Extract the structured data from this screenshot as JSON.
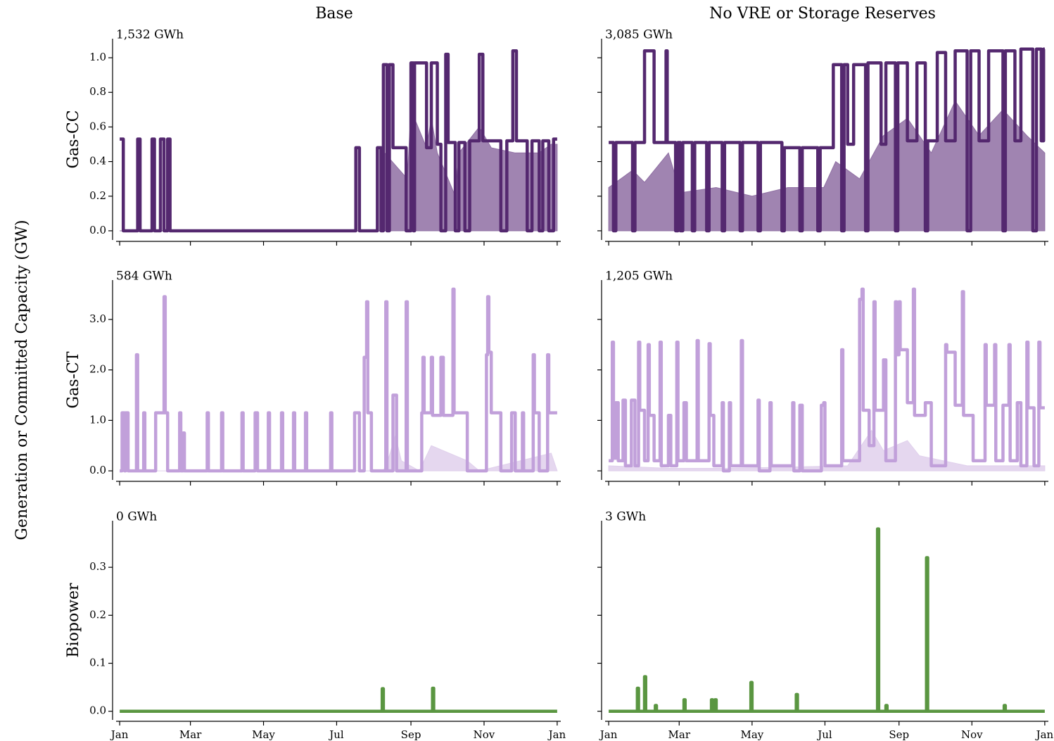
{
  "ylabel": "Generation or Committed Capacity (GW)",
  "chart_data": [
    {
      "type": "line",
      "title": "Base",
      "ylabel": "Gas-CC",
      "annotation": "1,532 GWh",
      "ylim": [
        -0.053,
        1.11
      ],
      "yticks": [
        {
          "value": 0,
          "label": "0.0"
        },
        {
          "value": 0.2,
          "label": "0.2"
        },
        {
          "value": 0.4,
          "label": "0.4"
        },
        {
          "value": 0.6,
          "label": "0.6"
        },
        {
          "value": 0.8,
          "label": "0.8"
        },
        {
          "value": 1.0,
          "label": "1.0"
        }
      ],
      "series": [
        {
          "style": "area",
          "color": "#8f6fa3",
          "x": [
            0,
            220,
            221,
            240,
            243,
            256,
            260,
            265,
            280,
            283,
            300,
            310,
            330,
            350,
            360,
            365
          ],
          "values": [
            0,
            0,
            0.45,
            0.3,
            0.7,
            0.48,
            0.65,
            0.45,
            0.2,
            0.45,
            0.6,
            0.48,
            0.45,
            0.45,
            0.5,
            0.5
          ]
        },
        {
          "style": "step",
          "color": "#54286f",
          "x": [
            0,
            3,
            15,
            17,
            27,
            29,
            34,
            37,
            40,
            42,
            197,
            200,
            215,
            218,
            220,
            223,
            225,
            228,
            239,
            243,
            245,
            246,
            256,
            260,
            265,
            268,
            272,
            274,
            280,
            283,
            288,
            292,
            300,
            303,
            318,
            323,
            328,
            331,
            340,
            344,
            350,
            353,
            358,
            362,
            365
          ],
          "values": [
            0.53,
            0,
            0.53,
            0,
            0.53,
            0,
            0.53,
            0,
            0.53,
            0,
            0.48,
            0,
            0.48,
            0,
            0.96,
            0,
            0.96,
            0.48,
            0,
            0.97,
            0,
            0.97,
            0.48,
            0.97,
            0.5,
            0,
            1.02,
            0.51,
            0,
            0.51,
            0,
            0.52,
            1.02,
            0.52,
            0,
            0.52,
            1.04,
            0.52,
            0,
            0.52,
            0,
            0.52,
            0,
            0.53,
            0.53
          ]
        }
      ]
    },
    {
      "type": "line",
      "title": "No VRE or Storage Reserves",
      "annotation": "3,085 GWh",
      "series": [
        {
          "style": "area",
          "color": "#8f6fa3",
          "x": [
            0,
            20,
            30,
            50,
            60,
            90,
            120,
            150,
            180,
            190,
            210,
            230,
            250,
            270,
            290,
            310,
            330,
            350,
            365
          ],
          "values": [
            0.25,
            0.35,
            0.28,
            0.45,
            0.22,
            0.25,
            0.2,
            0.25,
            0.25,
            0.4,
            0.3,
            0.55,
            0.65,
            0.45,
            0.75,
            0.55,
            0.7,
            0.55,
            0.45
          ]
        },
        {
          "style": "step",
          "color": "#54286f",
          "x": [
            0,
            4,
            6,
            20,
            22,
            30,
            38,
            48,
            49,
            56,
            58,
            60,
            62,
            70,
            72,
            82,
            84,
            95,
            97,
            110,
            112,
            125,
            127,
            145,
            147,
            160,
            162,
            175,
            177,
            188,
            195,
            197,
            200,
            205,
            215,
            217,
            228,
            232,
            240,
            242,
            250,
            258,
            265,
            267,
            275,
            282,
            290,
            300,
            303,
            310,
            318,
            330,
            332,
            340,
            345,
            355,
            358,
            362,
            364,
            365
          ],
          "values": [
            0.51,
            0,
            0.51,
            0,
            0.51,
            1.04,
            0.51,
            1.04,
            0.51,
            0,
            0.51,
            0,
            0.51,
            0,
            0.51,
            0,
            0.51,
            0,
            0.51,
            0,
            0.51,
            0,
            0.51,
            0,
            0.48,
            0,
            0.48,
            0,
            0.48,
            0.96,
            0,
            0.96,
            0.5,
            0.96,
            0,
            0.97,
            0.5,
            0.97,
            0,
            0.97,
            0.52,
            0.97,
            0,
            0.52,
            1.03,
            0.52,
            1.04,
            0,
            1.04,
            0.52,
            1.04,
            0,
            1.04,
            0.52,
            1.05,
            0,
            1.05,
            0.52,
            1.05,
            1.05
          ]
        }
      ]
    },
    {
      "type": "line",
      "ylabel": "Gas-CT",
      "annotation": "584 GWh",
      "ylim": [
        -0.18,
        3.78
      ],
      "yticks": [
        {
          "value": 0,
          "label": "0.0"
        },
        {
          "value": 1,
          "label": "1.0"
        },
        {
          "value": 2,
          "label": "2.0"
        },
        {
          "value": 3,
          "label": "3.0"
        }
      ],
      "series": [
        {
          "style": "area",
          "color": "#e0d0ec",
          "x": [
            0,
            220,
            225,
            230,
            235,
            250,
            260,
            270,
            290,
            300,
            360,
            365
          ],
          "values": [
            0,
            0,
            0.3,
            0.7,
            0.2,
            0,
            0.5,
            0.4,
            0.2,
            0,
            0.35,
            0
          ]
        },
        {
          "style": "step",
          "color": "#c1a0da",
          "x": [
            0,
            2,
            4,
            5,
            7,
            14,
            15,
            20,
            21,
            30,
            37,
            38,
            40,
            50,
            51,
            53,
            54,
            73,
            74,
            85,
            86,
            102,
            103,
            113,
            115,
            124,
            125,
            135,
            136,
            145,
            146,
            155,
            156,
            176,
            177,
            196,
            200,
            204,
            206,
            207,
            210,
            222,
            223,
            228,
            231,
            239,
            240,
            252,
            253,
            254,
            260,
            261,
            268,
            270,
            278,
            279,
            290,
            306,
            307,
            308,
            310,
            318,
            327,
            330,
            336,
            337,
            345,
            346,
            350,
            357,
            358,
            365
          ],
          "values": [
            0,
            1.15,
            0,
            1.15,
            0,
            2.3,
            0,
            1.15,
            0,
            1.15,
            3.45,
            1.15,
            0,
            1.15,
            0,
            0.75,
            0,
            1.15,
            0,
            1.15,
            0,
            1.15,
            0,
            1.15,
            0,
            1.15,
            0,
            1.15,
            0,
            1.15,
            0,
            1.15,
            0,
            1.15,
            0,
            1.15,
            0,
            2.25,
            3.35,
            1.15,
            0,
            3.35,
            0,
            1.5,
            0,
            3.35,
            0,
            1.15,
            2.25,
            1.15,
            2.25,
            1.1,
            2.25,
            1.1,
            3.6,
            1.15,
            0,
            2.3,
            3.45,
            2.35,
            1.15,
            0,
            1.15,
            0,
            1.15,
            0,
            2.3,
            1.15,
            0,
            2.3,
            1.15,
            1.15
          ]
        }
      ]
    },
    {
      "type": "line",
      "annotation": "1,205 GWh",
      "series": [
        {
          "style": "area",
          "color": "#e0d0ec",
          "x": [
            0,
            50,
            100,
            200,
            220,
            230,
            250,
            260,
            300,
            365
          ],
          "values": [
            0.1,
            0.05,
            0.05,
            0.1,
            0.8,
            0.4,
            0.6,
            0.3,
            0.1,
            0.1
          ]
        },
        {
          "style": "step",
          "color": "#c1a0da",
          "x": [
            0,
            3,
            4,
            6,
            8,
            12,
            14,
            19,
            22,
            25,
            26,
            30,
            33,
            34,
            38,
            43,
            44,
            50,
            52,
            57,
            58,
            63,
            65,
            74,
            75,
            84,
            85,
            88,
            95,
            96,
            101,
            102,
            111,
            112,
            125,
            126,
            135,
            136,
            154,
            155,
            160,
            162,
            178,
            180,
            181,
            195,
            196,
            210,
            212,
            213,
            218,
            222,
            223,
            230,
            232,
            240,
            241,
            243,
            244,
            250,
            255,
            256,
            265,
            270,
            282,
            283,
            290,
            296,
            297,
            305,
            315,
            316,
            323,
            324,
            330,
            335,
            336,
            342,
            345,
            350,
            351,
            356,
            360,
            361,
            365
          ],
          "values": [
            0.2,
            2.55,
            0.25,
            1.35,
            0.2,
            1.4,
            0.1,
            1.4,
            0.1,
            2.55,
            1.2,
            0.2,
            2.5,
            1.1,
            0.2,
            2.55,
            0.1,
            1.1,
            0.1,
            2.55,
            0.2,
            1.35,
            0.2,
            2.58,
            0.2,
            2.52,
            1.1,
            0.1,
            1.35,
            0,
            1.35,
            0.1,
            2.58,
            0.1,
            1.4,
            0,
            1.35,
            0.1,
            1.35,
            0,
            1.3,
            0,
            1.3,
            1.35,
            0.1,
            2.4,
            0.2,
            3.4,
            3.6,
            1.2,
            0.5,
            3.35,
            1.2,
            2.2,
            0.2,
            3.35,
            2.3,
            3.35,
            2.4,
            1.35,
            3.6,
            1.1,
            1.35,
            0.1,
            2.5,
            2.35,
            1.3,
            3.55,
            1.1,
            0.2,
            2.5,
            1.3,
            2.5,
            0.2,
            1.3,
            2.5,
            0.2,
            1.35,
            0.1,
            2.55,
            1.25,
            0.1,
            2.55,
            1.25,
            1.25
          ]
        }
      ]
    },
    {
      "type": "line",
      "ylabel": "Biopower",
      "annotation": "0 GWh",
      "ylim": [
        -0.018,
        0.397
      ],
      "yticks": [
        {
          "value": 0,
          "label": "0.0"
        },
        {
          "value": 0.1,
          "label": "0.1"
        },
        {
          "value": 0.2,
          "label": "0.2"
        },
        {
          "value": 0.3,
          "label": "0.3"
        }
      ],
      "xlim": [
        -3,
        368
      ],
      "xticks": [
        {
          "value": 0,
          "label": "Jan"
        },
        {
          "value": 59,
          "label": "Mar"
        },
        {
          "value": 120,
          "label": "May"
        },
        {
          "value": 181,
          "label": "Jul"
        },
        {
          "value": 243,
          "label": "Sep"
        },
        {
          "value": 304,
          "label": "Nov"
        },
        {
          "value": 365,
          "label": "Jan"
        }
      ],
      "series": [
        {
          "style": "step",
          "color": "#5a9641",
          "x": [
            0,
            219,
            220,
            261,
            262,
            365
          ],
          "values": [
            0,
            0.047,
            0,
            0.048,
            0,
            0
          ]
        }
      ]
    },
    {
      "type": "line",
      "annotation": "3 GWh",
      "xlim": [
        -3,
        368
      ],
      "xticks": [
        {
          "value": 0,
          "label": "Jan"
        },
        {
          "value": 59,
          "label": "Mar"
        },
        {
          "value": 120,
          "label": "May"
        },
        {
          "value": 181,
          "label": "Jul"
        },
        {
          "value": 243,
          "label": "Sep"
        },
        {
          "value": 304,
          "label": "Nov"
        },
        {
          "value": 365,
          "label": "Jan"
        }
      ],
      "series": [
        {
          "style": "step",
          "color": "#5a9641",
          "x": [
            0,
            24,
            25,
            30,
            31,
            39,
            40,
            63,
            64,
            86,
            87,
            89,
            90,
            119,
            120,
            157,
            158,
            225,
            226,
            232,
            233,
            266,
            267,
            331,
            332,
            365
          ],
          "values": [
            0,
            0.048,
            0,
            0.072,
            0,
            0.012,
            0,
            0.024,
            0,
            0.024,
            0,
            0.024,
            0,
            0.06,
            0,
            0.035,
            0,
            0.38,
            0,
            0.012,
            0,
            0.32,
            0,
            0.012,
            0,
            0
          ]
        }
      ]
    }
  ]
}
